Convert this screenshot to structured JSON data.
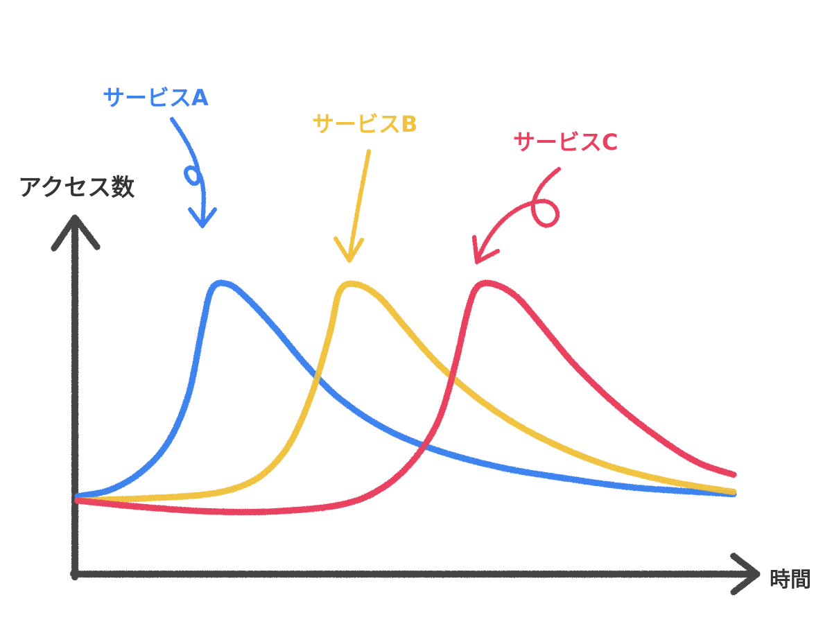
{
  "chart_data": {
    "type": "line",
    "title": "",
    "xlabel": "時間",
    "ylabel": "アクセス数",
    "axis_ticks": false,
    "grid": false,
    "style": "hand-drawn crayon",
    "series": [
      {
        "name": "サービスA",
        "color": "#3d82ee",
        "peak_x": 0.22,
        "points": [
          [
            0.0,
            0.02
          ],
          [
            0.05,
            0.05
          ],
          [
            0.1,
            0.14
          ],
          [
            0.14,
            0.28
          ],
          [
            0.17,
            0.5
          ],
          [
            0.19,
            0.8
          ],
          [
            0.205,
            0.98
          ],
          [
            0.23,
            1.0
          ],
          [
            0.26,
            0.93
          ],
          [
            0.3,
            0.8
          ],
          [
            0.35,
            0.62
          ],
          [
            0.4,
            0.47
          ],
          [
            0.47,
            0.33
          ],
          [
            0.55,
            0.23
          ],
          [
            0.65,
            0.15
          ],
          [
            0.75,
            0.1
          ],
          [
            0.85,
            0.06
          ],
          [
            1.0,
            0.03
          ]
        ]
      },
      {
        "name": "サービスB",
        "color": "#f0c241",
        "peak_x": 0.43,
        "points": [
          [
            0.0,
            0.0
          ],
          [
            0.1,
            0.01
          ],
          [
            0.2,
            0.03
          ],
          [
            0.26,
            0.08
          ],
          [
            0.3,
            0.17
          ],
          [
            0.33,
            0.3
          ],
          [
            0.36,
            0.52
          ],
          [
            0.385,
            0.78
          ],
          [
            0.4,
            0.97
          ],
          [
            0.425,
            1.0
          ],
          [
            0.46,
            0.94
          ],
          [
            0.5,
            0.8
          ],
          [
            0.55,
            0.63
          ],
          [
            0.62,
            0.45
          ],
          [
            0.7,
            0.3
          ],
          [
            0.8,
            0.17
          ],
          [
            0.9,
            0.09
          ],
          [
            1.0,
            0.04
          ]
        ]
      },
      {
        "name": "サービスC",
        "color": "#e8415f",
        "peak_x": 0.63,
        "points": [
          [
            0.0,
            0.0
          ],
          [
            0.1,
            -0.03
          ],
          [
            0.2,
            -0.05
          ],
          [
            0.3,
            -0.05
          ],
          [
            0.4,
            -0.02
          ],
          [
            0.46,
            0.05
          ],
          [
            0.51,
            0.18
          ],
          [
            0.55,
            0.37
          ],
          [
            0.575,
            0.62
          ],
          [
            0.595,
            0.88
          ],
          [
            0.61,
            0.99
          ],
          [
            0.635,
            1.0
          ],
          [
            0.67,
            0.94
          ],
          [
            0.71,
            0.8
          ],
          [
            0.76,
            0.62
          ],
          [
            0.83,
            0.42
          ],
          [
            0.9,
            0.26
          ],
          [
            0.95,
            0.17
          ],
          [
            1.0,
            0.12
          ]
        ]
      }
    ]
  }
}
